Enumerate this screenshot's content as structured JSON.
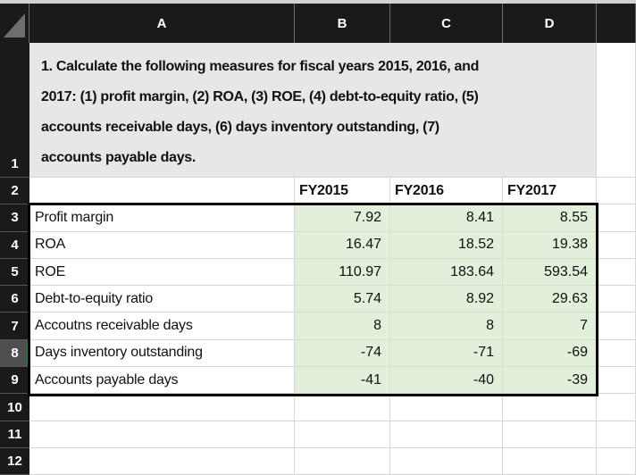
{
  "app": {
    "kind": "spreadsheet"
  },
  "column_headers": {
    "a": "A",
    "b": "B",
    "c": "C",
    "d": "D"
  },
  "row_headers": {
    "r1": "1",
    "r2": "2",
    "r3": "3",
    "r4": "4",
    "r5": "5",
    "r6": "6",
    "r7": "7",
    "r8": "8",
    "r9": "9",
    "r10": "10",
    "r11": "11",
    "r12": "12"
  },
  "selection": {
    "active_row": "8"
  },
  "instruction": {
    "full_text": "1. Calculate the following measures for fiscal years 2015, 2016, and 2017: (1) profit margin, (2) ROA, (3) ROE, (4) debt-to-equity ratio, (5) accounts receivable days, (6) days inventory outstanding, (7) accounts payable days.",
    "lines": [
      "1. Calculate the following measures for fiscal years 2015, 2016, and",
      "2017: (1) profit margin, (2) ROA, (3) ROE, (4) debt-to-equity ratio, (5)",
      "accounts receivable days, (6) days inventory outstanding, (7)",
      "accounts payable days."
    ]
  },
  "table": {
    "year_headers": [
      "FY2015",
      "FY2016",
      "FY2017"
    ],
    "rows": [
      {
        "label": "Profit margin",
        "values": [
          "7.92",
          "8.41",
          "8.55"
        ]
      },
      {
        "label": "ROA",
        "values": [
          "16.47",
          "18.52",
          "19.38"
        ]
      },
      {
        "label": "ROE",
        "values": [
          "110.97",
          "183.64",
          "593.54"
        ]
      },
      {
        "label": "Debt-to-equity ratio",
        "values": [
          "5.74",
          "8.92",
          "29.63"
        ]
      },
      {
        "label": "Accoutns receivable days",
        "values": [
          "8",
          "8",
          "7"
        ]
      },
      {
        "label": "Days inventory outstanding",
        "values": [
          "-74",
          "-71",
          "-69"
        ]
      },
      {
        "label": "Accounts payable days",
        "values": [
          "-41",
          "-40",
          "-39"
        ]
      }
    ]
  },
  "colors": {
    "header_bg": "#1a1a1a",
    "active_row_header_bg": "#4f4f4f",
    "accent_green_strip": "#2f7d4f",
    "green_fill": "#e2efda",
    "instruction_fill": "#e7e7e7",
    "gridline": "#d6d6d6",
    "table_border": "#000000"
  }
}
